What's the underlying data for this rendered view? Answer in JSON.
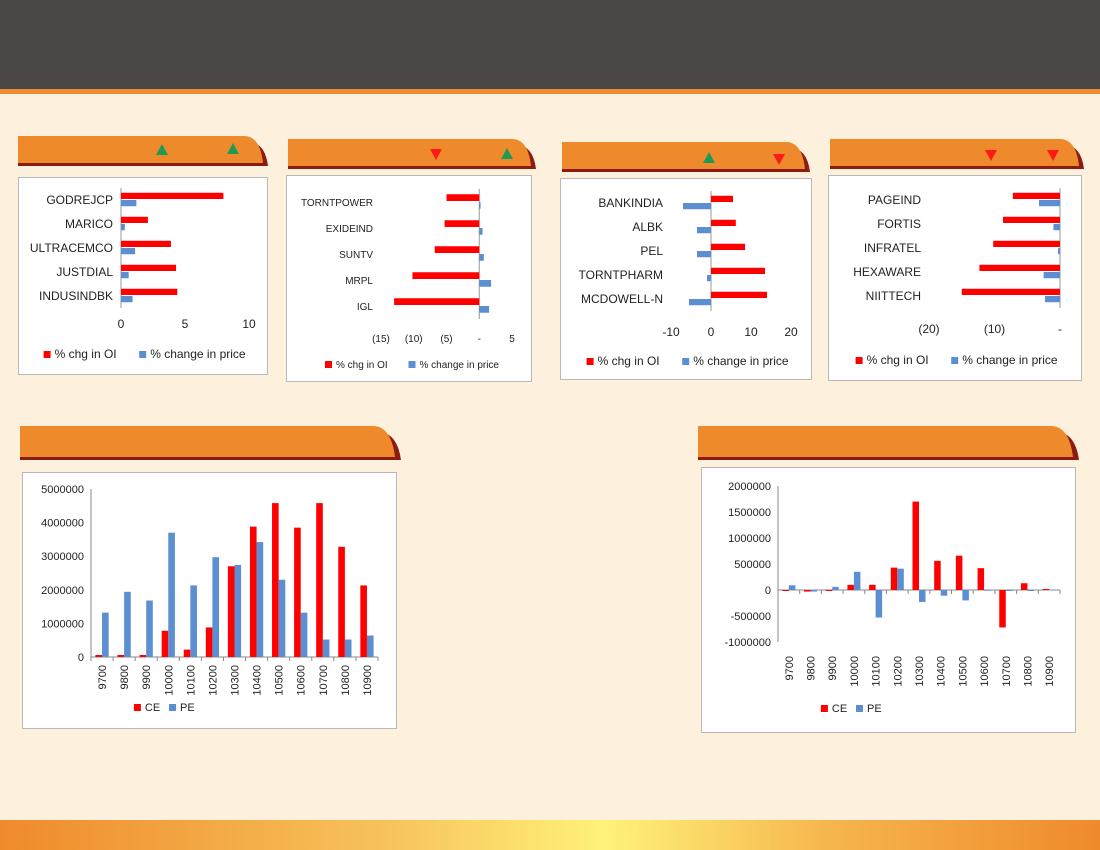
{
  "header": {
    "title": ""
  },
  "colors": {
    "oi": "#ff0000",
    "price": "#5b8fd1",
    "ce": "#ff0000",
    "pe": "#5b8fd1",
    "accent": "#ef8a2c",
    "up": "#1e9a55",
    "down": "#ff1a1a"
  },
  "section_tabs": [
    {
      "indicators": [
        "up-triangle-icon",
        "up-triangle-icon"
      ]
    },
    {
      "indicators": [
        "down-triangle-icon",
        "up-triangle-icon"
      ]
    },
    {
      "indicators": [
        "up-triangle-icon",
        "down-triangle-icon"
      ]
    },
    {
      "indicators": [
        "down-triangle-icon",
        "down-triangle-icon"
      ]
    },
    {
      "indicators": []
    },
    {
      "indicators": []
    }
  ],
  "chart_data": [
    {
      "type": "bar",
      "orientation": "horizontal",
      "categories": [
        "GODREJCP",
        "MARICO",
        "ULTRACEMCO",
        "JUSTDIAL",
        "INDUSINDBK"
      ],
      "series": [
        {
          "name": "% chg in OI",
          "values": [
            8.0,
            2.1,
            3.9,
            4.3,
            4.4
          ]
        },
        {
          "name": "% change in price",
          "values": [
            1.2,
            0.3,
            1.1,
            0.6,
            0.9
          ]
        }
      ],
      "xlim": [
        0,
        10
      ],
      "xticks": [
        0,
        5,
        10
      ],
      "xtick_labels": [
        "0",
        "5",
        "10"
      ],
      "legend": "bottom",
      "label_font": 12
    },
    {
      "type": "bar",
      "orientation": "horizontal",
      "categories": [
        "TORNTPOWER",
        "EXIDEIND",
        "SUNTV",
        "MRPL",
        "IGL"
      ],
      "series": [
        {
          "name": "% chg in OI",
          "values": [
            -5.0,
            -5.3,
            -6.8,
            -10.2,
            -13.0
          ]
        },
        {
          "name": "% change in price",
          "values": [
            0.2,
            0.5,
            0.7,
            1.8,
            1.5
          ]
        }
      ],
      "xlim": [
        -15,
        5
      ],
      "xticks": [
        -15,
        -10,
        -5,
        0,
        5
      ],
      "xtick_labels": [
        "(15)",
        "(10)",
        "(5)",
        "-",
        "5"
      ],
      "legend": "bottom",
      "label_font": 10
    },
    {
      "type": "bar",
      "orientation": "horizontal",
      "categories": [
        "BANKINDIA",
        "ALBK",
        "PEL",
        "TORNTPHARM",
        "MCDOWELL-N"
      ],
      "series": [
        {
          "name": "% chg in OI",
          "values": [
            5.5,
            6.2,
            8.5,
            13.5,
            14.0
          ]
        },
        {
          "name": "% change in price",
          "values": [
            -7.0,
            -3.5,
            -3.5,
            -1.0,
            -5.5
          ]
        }
      ],
      "xlim": [
        -10,
        20
      ],
      "xticks": [
        -10,
        0,
        10,
        20
      ],
      "xtick_labels": [
        "-10",
        "0",
        "10",
        "20"
      ],
      "legend": "bottom",
      "label_font": 12
    },
    {
      "type": "bar",
      "orientation": "horizontal",
      "categories": [
        "PAGEIND",
        "FORTIS",
        "INFRATEL",
        "HEXAWARE",
        "NIITTECH"
      ],
      "series": [
        {
          "name": "% chg in OI",
          "values": [
            -7.2,
            -8.7,
            -10.2,
            -12.3,
            -15.0
          ]
        },
        {
          "name": "% change in price",
          "values": [
            -3.2,
            -1.0,
            -0.3,
            -2.5,
            -2.3
          ]
        }
      ],
      "xlim": [
        -20,
        0
      ],
      "xticks": [
        -20,
        -10,
        0
      ],
      "xtick_labels": [
        "(20)",
        "(10)",
        "-"
      ],
      "legend": "bottom",
      "label_font": 12
    },
    {
      "type": "bar",
      "categories": [
        "9700",
        "9800",
        "9900",
        "10000",
        "10100",
        "10200",
        "10300",
        "10400",
        "10500",
        "10600",
        "10700",
        "10800",
        "10900"
      ],
      "series": [
        {
          "name": "CE",
          "values": [
            60000,
            60000,
            60000,
            780000,
            220000,
            880000,
            2700000,
            3880000,
            4580000,
            3850000,
            4580000,
            3280000,
            2130000
          ]
        },
        {
          "name": "PE",
          "values": [
            1320000,
            1940000,
            1680000,
            3700000,
            2130000,
            2970000,
            2740000,
            3420000,
            2300000,
            1320000,
            520000,
            520000,
            640000
          ]
        }
      ],
      "ylim": [
        0,
        5000000
      ],
      "yticks": [
        0,
        1000000,
        2000000,
        3000000,
        4000000,
        5000000
      ],
      "legend": "bottom"
    },
    {
      "type": "bar",
      "categories": [
        "9700",
        "9800",
        "9900",
        "10000",
        "10100",
        "10200",
        "10300",
        "10400",
        "10500",
        "10600",
        "10700",
        "10800",
        "10900"
      ],
      "series": [
        {
          "name": "CE",
          "values": [
            -5000,
            -30000,
            -10000,
            100000,
            100000,
            430000,
            1700000,
            560000,
            660000,
            420000,
            -720000,
            130000,
            20000
          ]
        },
        {
          "name": "PE",
          "values": [
            90000,
            -30000,
            60000,
            350000,
            -530000,
            410000,
            -230000,
            -110000,
            -200000,
            5000,
            -10000,
            -5000,
            10000
          ]
        }
      ],
      "ylim": [
        -1000000,
        2000000
      ],
      "yticks": [
        -1000000,
        -500000,
        0,
        500000,
        1000000,
        1500000,
        2000000
      ],
      "legend": "bottom"
    }
  ]
}
